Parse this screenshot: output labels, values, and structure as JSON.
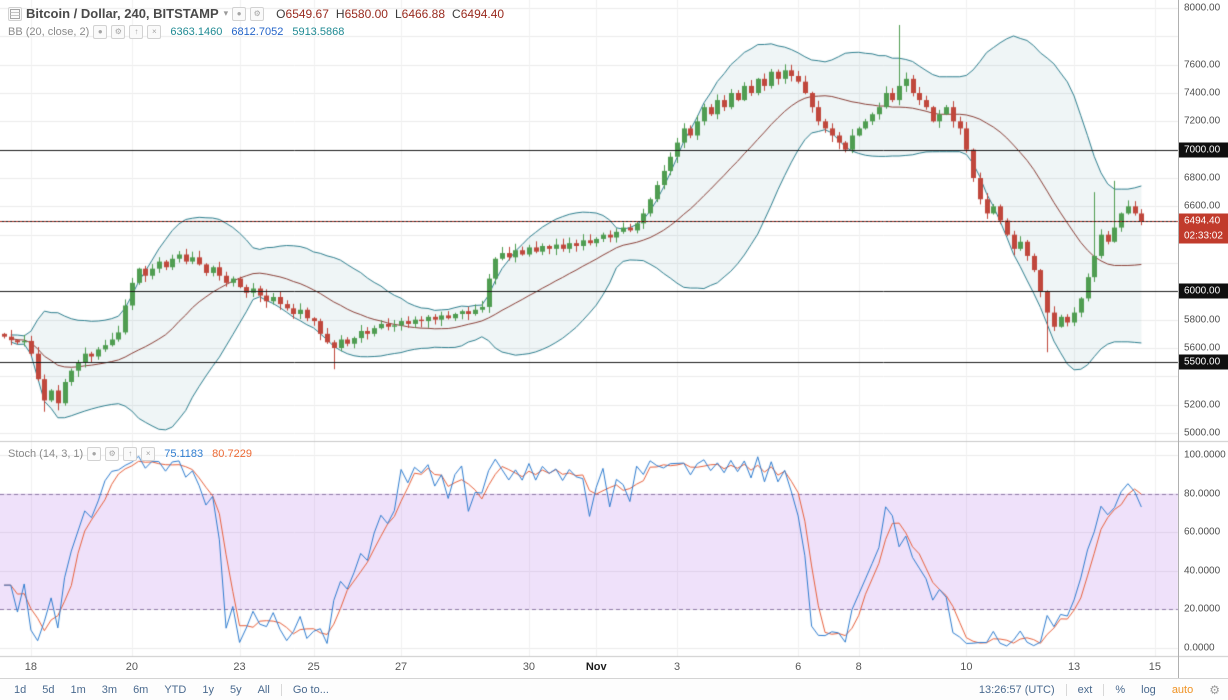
{
  "symbol": {
    "title": "Bitcoin / Dollar, 240, BITSTAMP",
    "ohlc": [
      {
        "k": "O",
        "v": "6549.67"
      },
      {
        "k": "H",
        "v": "6580.00"
      },
      {
        "k": "L",
        "v": "6466.88"
      },
      {
        "k": "C",
        "v": "6494.40"
      }
    ]
  },
  "bb": {
    "label": "BB (20, close, 2)",
    "basis": "6363.1460",
    "upper": "6812.7052",
    "lower": "5913.5868"
  },
  "stoch": {
    "label": "Stoch (14, 3, 1)",
    "k": "75.1183",
    "d": "80.7229"
  },
  "price_axis": {
    "ticks": [
      {
        "label": "8000.00",
        "price": 8000
      },
      {
        "label": "7600.00",
        "price": 7600
      },
      {
        "label": "7400.00",
        "price": 7400
      },
      {
        "label": "7200.00",
        "price": 7200
      },
      {
        "label": "6800.00",
        "price": 6800
      },
      {
        "label": "6600.00",
        "price": 6600
      },
      {
        "label": "5800.00",
        "price": 5800
      },
      {
        "label": "5600.00",
        "price": 5600
      },
      {
        "label": "5200.00",
        "price": 5200
      },
      {
        "label": "5000.00",
        "price": 5000
      }
    ],
    "levels": [
      {
        "label": "7000.00",
        "price": 7000
      },
      {
        "label": "6500.00",
        "price": 6500
      },
      {
        "label": "6000.00",
        "price": 6000
      },
      {
        "label": "5500.00",
        "price": 5500
      }
    ],
    "last_price": {
      "label": "6494.40",
      "price": 6494.4
    },
    "countdown": "02:33:02"
  },
  "stoch_axis": {
    "ticks": [
      {
        "label": "100.0000",
        "value": 100
      },
      {
        "label": "80.0000",
        "value": 80
      },
      {
        "label": "60.0000",
        "value": 60
      },
      {
        "label": "40.0000",
        "value": 40
      },
      {
        "label": "20.0000",
        "value": 20
      },
      {
        "label": "0.0000",
        "value": 0
      }
    ]
  },
  "time_axis": {
    "labels": [
      {
        "text": "18",
        "idx": 4
      },
      {
        "text": "20",
        "idx": 19
      },
      {
        "text": "23",
        "idx": 35
      },
      {
        "text": "25",
        "idx": 46
      },
      {
        "text": "27",
        "idx": 59
      },
      {
        "text": "30",
        "idx": 78
      },
      {
        "text": "Nov",
        "idx": 88,
        "major": true
      },
      {
        "text": "3",
        "idx": 100
      },
      {
        "text": "6",
        "idx": 118
      },
      {
        "text": "8",
        "idx": 127
      },
      {
        "text": "10",
        "idx": 143
      },
      {
        "text": "13",
        "idx": 159
      },
      {
        "text": "15",
        "idx": 171
      }
    ]
  },
  "toolbar": {
    "ranges": [
      "1d",
      "5d",
      "1m",
      "3m",
      "6m",
      "YTD",
      "1y",
      "5y",
      "All"
    ],
    "goto": "Go to...",
    "clock": "13:26:57 (UTC)",
    "ext": "ext",
    "percent": "%",
    "log": "log",
    "auto": "auto"
  },
  "colors": {
    "background": "#ffffff",
    "grid": "#ececec",
    "vgrid": "#f1f1f1",
    "candle_up": "#4f9d51",
    "candle_down": "#c0473c",
    "bb_band": "#2e7f8f",
    "bb_fill": "rgba(46,127,143,0.08)",
    "bb_basis": "#8a4038",
    "level_line": "#1a1a1a",
    "last_price_line": "#b03024",
    "stoch_k": "#2f7dd0",
    "stoch_d": "#e8623e",
    "stoch_zone_fill": "rgba(184,118,230,0.22)",
    "stoch_zone_line": "#8f7aa8",
    "separator": "#c9c9c9"
  },
  "chart_data": {
    "type": "candlestick",
    "title": "Bitcoin / Dollar",
    "exchange": "BITSTAMP",
    "interval": "240",
    "price_axis_range": [
      5000,
      8000
    ],
    "grid_step": 200,
    "levels": [
      7000,
      6500,
      6000,
      5500
    ],
    "last_price": 6494.4,
    "first_open": 5700,
    "last_candle": {
      "open": 6549.67,
      "high": 6580.0,
      "low": 6466.88,
      "close": 6494.4
    },
    "closes": [
      5680,
      5655,
      5640,
      5650,
      5560,
      5380,
      5230,
      5300,
      5210,
      5360,
      5440,
      5500,
      5560,
      5540,
      5590,
      5620,
      5660,
      5710,
      5900,
      6060,
      6160,
      6110,
      6160,
      6210,
      6170,
      6230,
      6260,
      6210,
      6240,
      6190,
      6130,
      6170,
      6110,
      6060,
      6090,
      6030,
      5990,
      6020,
      5970,
      5930,
      5960,
      5910,
      5880,
      5840,
      5870,
      5810,
      5790,
      5700,
      5640,
      5600,
      5660,
      5630,
      5670,
      5720,
      5700,
      5740,
      5770,
      5750,
      5760,
      5790,
      5770,
      5800,
      5790,
      5820,
      5800,
      5830,
      5810,
      5840,
      5860,
      5840,
      5870,
      5890,
      6090,
      6230,
      6270,
      6240,
      6290,
      6260,
      6310,
      6280,
      6320,
      6300,
      6330,
      6300,
      6340,
      6320,
      6360,
      6340,
      6370,
      6400,
      6380,
      6420,
      6450,
      6430,
      6480,
      6550,
      6650,
      6750,
      6850,
      6950,
      7050,
      7150,
      7100,
      7200,
      7300,
      7250,
      7350,
      7300,
      7400,
      7350,
      7450,
      7400,
      7500,
      7450,
      7550,
      7500,
      7560,
      7520,
      7480,
      7400,
      7300,
      7200,
      7150,
      7100,
      7050,
      7000,
      7100,
      7150,
      7200,
      7250,
      7300,
      7400,
      7350,
      7450,
      7500,
      7400,
      7350,
      7300,
      7200,
      7250,
      7300,
      7200,
      7150,
      7000,
      6800,
      6650,
      6550,
      6600,
      6500,
      6400,
      6300,
      6350,
      6250,
      6150,
      6000,
      5850,
      5750,
      5820,
      5780,
      5850,
      5950,
      6100,
      6250,
      6400,
      6350,
      6450,
      6550,
      6600,
      6550,
      6494.4
    ],
    "wick_overrides": {
      "6": {
        "low": 5150
      },
      "8": {
        "low": 5160
      },
      "49": {
        "low": 5450
      },
      "133": {
        "high": 7880
      },
      "155": {
        "low": 5570
      },
      "162": {
        "high": 6700
      },
      "165": {
        "high": 6780
      }
    },
    "indicators": [
      {
        "name": "BB",
        "length": 20,
        "source": "close",
        "mult": 2,
        "values": {
          "basis": 6363.146,
          "upper": 6812.7052,
          "lower": 5913.5868
        }
      },
      {
        "name": "Stoch",
        "k": 14,
        "d": 3,
        "smooth": 1,
        "overbought": 80,
        "oversold": 20,
        "range": [
          0,
          100
        ],
        "values": {
          "k": 75.1183,
          "d": 80.7229
        }
      }
    ]
  }
}
